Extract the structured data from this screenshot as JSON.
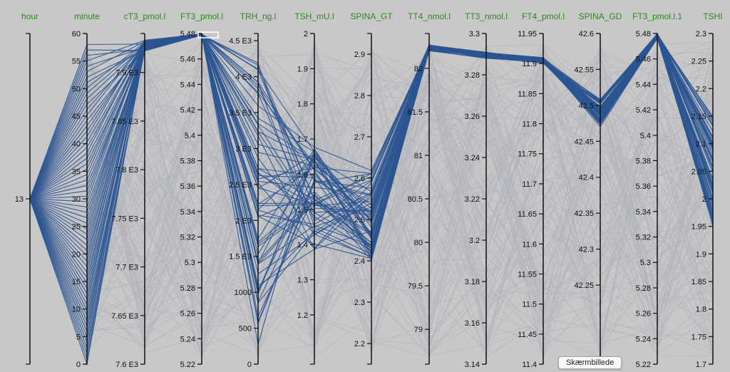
{
  "chart_data": {
    "type": "parallel_coordinates",
    "colors": {
      "background": "#c8c8c8",
      "selected": "#2c5592",
      "unselected": "#b0b3bb",
      "dimension_label": "#2a8a1a",
      "axis": "#111111"
    },
    "dimensions": [
      {
        "name": "hour",
        "range": [
          12.5,
          13.5
        ],
        "ticks": [
          "13"
        ]
      },
      {
        "name": "minute",
        "range": [
          0,
          60
        ],
        "ticks": [
          "0",
          "5",
          "10",
          "15",
          "20",
          "25",
          "30",
          "35",
          "40",
          "45",
          "50",
          "55",
          "60"
        ]
      },
      {
        "name": "cT3_pmol.l",
        "range": [
          7600,
          7940
        ],
        "ticks": [
          "7.6 E3",
          "7.65 E3",
          "7.7 E3",
          "7.75 E3",
          "7.8 E3",
          "7.85 E3",
          "7.9 E3"
        ]
      },
      {
        "name": "FT3_pmol.l",
        "range": [
          5.22,
          5.48
        ],
        "ticks": [
          "5.22",
          "5.24",
          "5.26",
          "5.28",
          "5.3",
          "5.32",
          "5.34",
          "5.36",
          "5.38",
          "5.4",
          "5.42",
          "5.44",
          "5.46",
          "5.48"
        ]
      },
      {
        "name": "TRH_ng.l",
        "range": [
          0,
          4600
        ],
        "ticks": [
          "0",
          "500",
          "1000",
          "1.5 E3",
          "2 E3",
          "2.5 E3",
          "3 E3",
          "3.5 E3",
          "4 E3",
          "4.5 E3"
        ]
      },
      {
        "name": "TSH_mU.l",
        "range": [
          1.06,
          2.0
        ],
        "ticks": [
          "1.2",
          "1.3",
          "1.4",
          "1.5",
          "1.6",
          "1.7",
          "1.8",
          "1.9",
          "2"
        ]
      },
      {
        "name": "SPINA_GT",
        "range": [
          2.15,
          2.95
        ],
        "ticks": [
          "2.2",
          "2.3",
          "2.4",
          "2.5",
          "2.6",
          "2.7",
          "2.8",
          "2.9"
        ]
      },
      {
        "name": "TT4_nmol.l",
        "range": [
          78.6,
          82.4
        ],
        "ticks": [
          "79",
          "79.5",
          "80",
          "80.5",
          "81",
          "81.5",
          "82"
        ]
      },
      {
        "name": "TT3_nmol.l",
        "range": [
          3.14,
          3.3
        ],
        "ticks": [
          "3.14",
          "3.16",
          "3.18",
          "3.2",
          "3.22",
          "3.24",
          "3.26",
          "3.28",
          "3.3"
        ]
      },
      {
        "name": "FT4_pmol.l",
        "range": [
          11.4,
          11.95
        ],
        "ticks": [
          "11.4",
          "11.45",
          "11.5",
          "11.55",
          "11.6",
          "11.65",
          "11.7",
          "11.75",
          "11.8",
          "11.85",
          "11.9",
          "11.95"
        ]
      },
      {
        "name": "SPINA_GD",
        "range": [
          42.14,
          42.6
        ],
        "ticks": [
          "42.25",
          "42.3",
          "42.35",
          "42.4",
          "42.45",
          "42.5",
          "42.55",
          "42.6"
        ]
      },
      {
        "name": "FT3_pmol.l.1",
        "range": [
          5.22,
          5.48
        ],
        "ticks": [
          "5.22",
          "5.24",
          "5.26",
          "5.28",
          "5.3",
          "5.32",
          "5.34",
          "5.36",
          "5.38",
          "5.4",
          "5.42",
          "5.44",
          "5.46",
          "5.48"
        ]
      },
      {
        "name": "TSHI",
        "range": [
          1.7,
          2.3
        ],
        "ticks": [
          "1.7",
          "1.75",
          "1.8",
          "1.85",
          "1.9",
          "1.95",
          "2",
          "2.05",
          "2.1",
          "2.15",
          "2.2",
          "2.25",
          "2.3"
        ]
      }
    ],
    "brush": {
      "dimension": "FT3_pmol.l",
      "range": [
        5.475,
        5.48
      ]
    },
    "selected_count": 60,
    "background_count": 150
  },
  "tooltip": {
    "text": "Skærmbillede"
  }
}
